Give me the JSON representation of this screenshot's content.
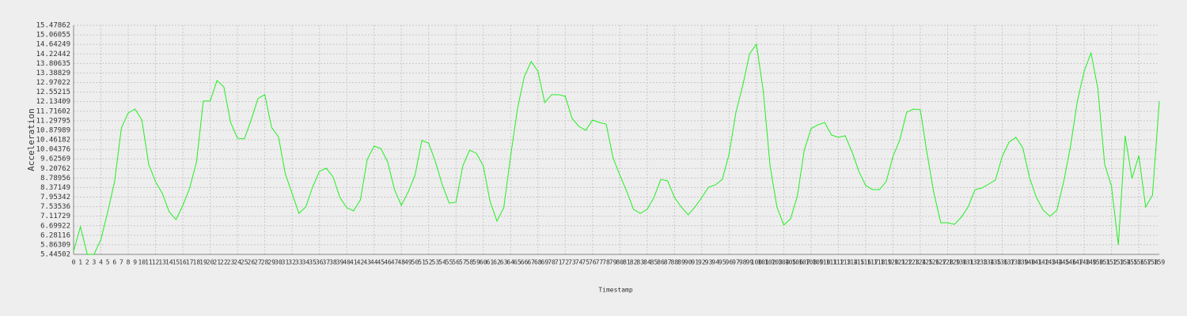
{
  "chart_data": {
    "type": "line",
    "xlabel": "Timestamp",
    "ylabel": "Acceleration",
    "categories": [
      "0",
      "1",
      "2",
      "3",
      "4",
      "5",
      "6",
      "7",
      "8",
      "9",
      "10",
      "11",
      "12",
      "13",
      "14",
      "15",
      "16",
      "17",
      "18",
      "19",
      "20",
      "21",
      "22",
      "23",
      "24",
      "25",
      "26",
      "27",
      "28",
      "29",
      "30",
      "31",
      "32",
      "33",
      "34",
      "35",
      "36",
      "37",
      "38",
      "39",
      "40",
      "41",
      "42",
      "43",
      "44",
      "45",
      "46",
      "47",
      "48",
      "49",
      "50",
      "51",
      "52",
      "53",
      "54",
      "55",
      "56",
      "57",
      "58",
      "59",
      "60",
      "61",
      "62",
      "63",
      "64",
      "65",
      "66",
      "67",
      "68",
      "69",
      "70",
      "71",
      "72",
      "73",
      "74",
      "75",
      "76",
      "77",
      "78",
      "79",
      "80",
      "81",
      "82",
      "83",
      "84",
      "85",
      "86",
      "87",
      "88",
      "89",
      "90",
      "91",
      "92",
      "93",
      "94",
      "95",
      "96",
      "97",
      "98",
      "99",
      "100",
      "101",
      "102",
      "103",
      "104",
      "105",
      "106",
      "107",
      "108",
      "109",
      "110",
      "111",
      "112",
      "113",
      "114",
      "115",
      "116",
      "117",
      "118",
      "119",
      "120",
      "121",
      "122",
      "123",
      "124",
      "125",
      "126",
      "127",
      "128",
      "129",
      "130",
      "131",
      "132",
      "133",
      "134",
      "135",
      "136",
      "137",
      "138",
      "139",
      "140",
      "141",
      "142",
      "143",
      "144",
      "145",
      "146",
      "147",
      "148",
      "149",
      "150",
      "151",
      "152",
      "153",
      "154",
      "155",
      "156",
      "157",
      "158",
      "159"
    ],
    "series": [
      {
        "name": "Acceleration",
        "color": "#22ee22",
        "values": [
          5.58,
          6.66,
          5.45,
          5.45,
          6.1,
          7.31,
          8.63,
          10.98,
          11.64,
          11.81,
          11.33,
          9.39,
          8.63,
          8.11,
          7.31,
          6.97,
          7.59,
          8.35,
          9.49,
          12.16,
          12.16,
          13.06,
          12.78,
          11.22,
          10.53,
          10.5,
          11.33,
          12.27,
          12.44,
          11.0,
          10.6,
          8.98,
          8.11,
          7.24,
          7.52,
          8.39,
          9.08,
          9.22,
          8.84,
          7.94,
          7.49,
          7.35,
          7.83,
          9.6,
          10.19,
          10.08,
          9.49,
          8.28,
          7.59,
          8.18,
          8.91,
          10.43,
          10.32,
          9.49,
          8.49,
          7.69,
          7.73,
          9.32,
          10.01,
          9.87,
          9.32,
          7.76,
          6.9,
          7.49,
          9.74,
          11.81,
          13.23,
          13.89,
          13.47,
          12.09,
          12.44,
          12.44,
          12.37,
          11.4,
          11.05,
          10.88,
          11.33,
          11.22,
          11.15,
          9.67,
          8.91,
          8.21,
          7.42,
          7.24,
          7.42,
          7.94,
          8.73,
          8.66,
          7.94,
          7.52,
          7.18,
          7.52,
          7.94,
          8.39,
          8.49,
          8.73,
          9.84,
          11.67,
          12.85,
          14.23,
          14.65,
          12.61,
          9.32,
          7.52,
          6.73,
          7.0,
          8.01,
          10.01,
          10.95,
          11.12,
          11.22,
          10.67,
          10.57,
          10.64,
          9.94,
          9.08,
          8.46,
          8.28,
          8.28,
          8.63,
          9.74,
          10.46,
          11.67,
          11.81,
          11.78,
          9.84,
          8.11,
          6.83,
          6.83,
          6.76,
          7.07,
          7.52,
          8.28,
          8.35,
          8.52,
          8.7,
          9.74,
          10.36,
          10.57,
          10.12,
          8.8,
          7.94,
          7.38,
          7.11,
          7.38,
          8.63,
          10.19,
          12.16,
          13.47,
          14.27,
          12.71,
          9.39,
          8.42,
          5.86,
          10.64,
          8.77,
          9.77,
          7.52,
          8.04,
          12.16
        ]
      }
    ],
    "ylim": [
      5.44502,
      15.47862
    ],
    "yticks": [
      5.44502,
      5.86309,
      6.28116,
      6.69922,
      7.11729,
      7.53536,
      7.95342,
      8.37149,
      8.78956,
      9.20762,
      9.62569,
      10.04376,
      10.46182,
      10.87989,
      11.29795,
      11.71602,
      12.13409,
      12.55215,
      12.97022,
      13.38829,
      13.80635,
      14.22442,
      14.64249,
      15.06055,
      15.47862
    ],
    "grid": true
  }
}
